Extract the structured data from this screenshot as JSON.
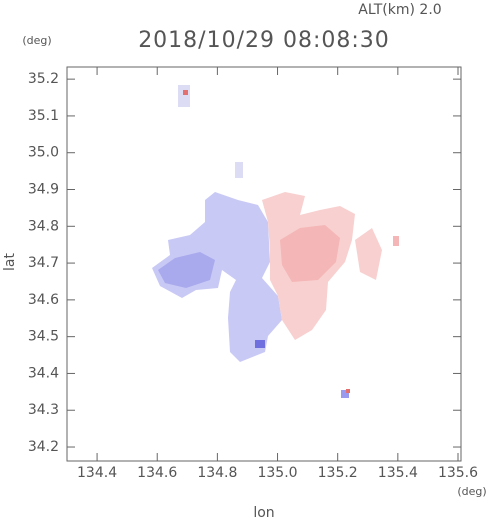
{
  "chart_data": {
    "type": "radar-map",
    "title": "2018/10/29 08:08:30",
    "subtitle": "ALT(km) 2.0",
    "x_label": "lon",
    "y_label": "lat",
    "x_unit": "(deg)",
    "y_unit": "(deg)",
    "xlim": [
      134.3,
      135.61
    ],
    "ylim": [
      34.162,
      35.233
    ],
    "xticks": [
      134.4,
      134.6,
      134.8,
      {
        "value": 135,
        "label": "135.0"
      },
      135.2,
      135.4,
      135.6
    ],
    "yticks": [
      34.2,
      34.3,
      34.4,
      34.5,
      34.6,
      34.7,
      34.8,
      34.9,
      {
        "value": 35,
        "label": "35.0"
      },
      35.1,
      35.2
    ]
  }
}
